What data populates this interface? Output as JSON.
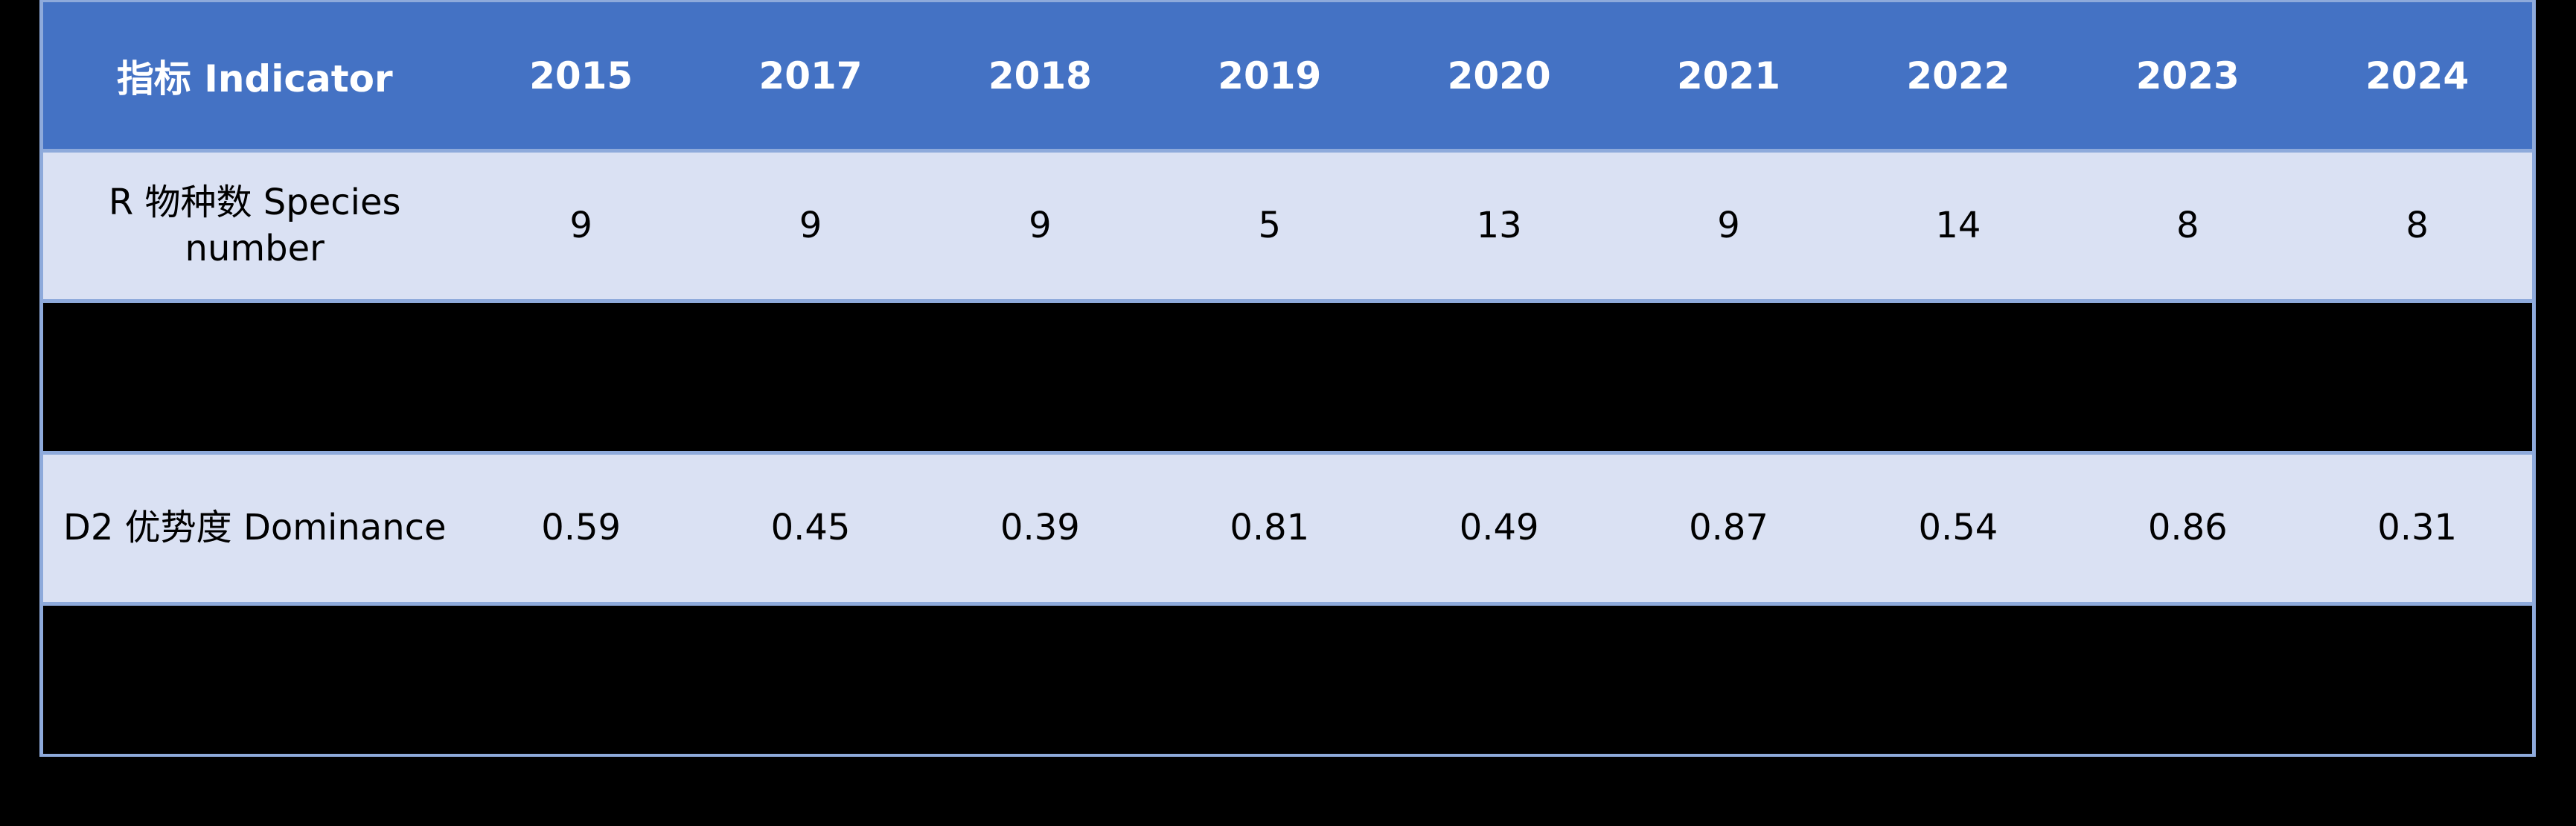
{
  "page": {
    "background_color": "#000000"
  },
  "colors": {
    "header_fill": "#4472C4",
    "banded_row_fill": "#DAE1F3",
    "border": "#8EAADB",
    "hidden_row_fill": "#000000",
    "header_text": "#FFFFFF",
    "body_text": "#000000"
  },
  "table": {
    "header": {
      "cells": [
        "指标 Indicator",
        "2015",
        "2017",
        "2018",
        "2019",
        "2020",
        "2021",
        "2022",
        "2023",
        "2024"
      ]
    },
    "rows": [
      {
        "label": "R 物种数 Species\nnumber",
        "values": [
          "9",
          "9",
          "9",
          "5",
          "13",
          "9",
          "14",
          "8",
          "8"
        ]
      },
      {
        "label": "D2 优势度 Dominance",
        "values": [
          "0.59",
          "0.45",
          "0.39",
          "0.81",
          "0.49",
          "0.87",
          "0.54",
          "0.86",
          "0.31"
        ]
      }
    ]
  },
  "chart_data": {
    "type": "table",
    "title": "",
    "columns": [
      "指标 Indicator",
      "2015",
      "2017",
      "2018",
      "2019",
      "2020",
      "2021",
      "2022",
      "2023",
      "2024"
    ],
    "rows": [
      [
        "R 物种数 Species number",
        9,
        9,
        9,
        5,
        13,
        9,
        14,
        8,
        8
      ],
      [
        "D2 优势度 Dominance",
        0.59,
        0.45,
        0.39,
        0.81,
        0.49,
        0.87,
        0.54,
        0.86,
        0.31
      ]
    ],
    "notes": "Two additional table rows are filled solid black with no visible content; page background is black; no year 2016 column."
  }
}
